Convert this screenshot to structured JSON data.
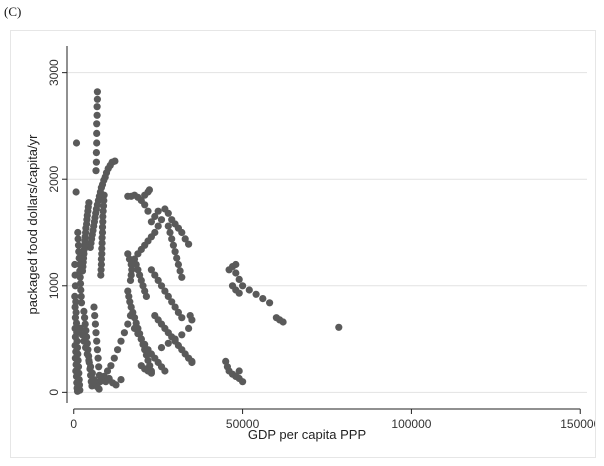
{
  "panel_label": "(C)",
  "chart_data": {
    "type": "scatter",
    "title": "",
    "xlabel": "GDP per capita PPP",
    "ylabel": "packaged food dollars/capita/yr",
    "xlim": [
      -2000,
      152000
    ],
    "ylim": [
      -100,
      3250
    ],
    "x_ticks": [
      0,
      50000,
      100000,
      150000
    ],
    "x_tick_labels": [
      "0",
      "50000",
      "100000",
      "150000"
    ],
    "y_ticks": [
      0,
      1000,
      2000,
      3000
    ],
    "y_tick_labels": [
      "0",
      "1000",
      "2000",
      "3000"
    ],
    "grid": "horizontal",
    "legend": "none",
    "marker_color": "#5a5a5a",
    "series": [
      {
        "points": [
          [
            800,
            2340
          ],
          [
            700,
            1880
          ],
          [
            7000,
            2820
          ],
          [
            7000,
            2750
          ],
          [
            6900,
            2680
          ],
          [
            6900,
            2600
          ],
          [
            6800,
            2520
          ],
          [
            6800,
            2430
          ],
          [
            6800,
            2340
          ],
          [
            6700,
            2250
          ],
          [
            6700,
            2160
          ],
          [
            6600,
            2080
          ],
          [
            12200,
            2170
          ],
          [
            11400,
            2160
          ],
          [
            10800,
            2130
          ],
          [
            10200,
            2100
          ],
          [
            9700,
            2060
          ],
          [
            9300,
            2020
          ],
          [
            8900,
            1990
          ],
          [
            8500,
            1950
          ],
          [
            8200,
            1920
          ],
          [
            7900,
            1880
          ],
          [
            7600,
            1840
          ],
          [
            7300,
            1800
          ],
          [
            7000,
            1760
          ],
          [
            6700,
            1720
          ],
          [
            6500,
            1680
          ],
          [
            6300,
            1640
          ],
          [
            6100,
            1600
          ],
          [
            5900,
            1560
          ],
          [
            5700,
            1520
          ],
          [
            5500,
            1480
          ],
          [
            5300,
            1440
          ],
          [
            5100,
            1400
          ],
          [
            4900,
            1360
          ],
          [
            4500,
            1780
          ],
          [
            4300,
            1740
          ],
          [
            4200,
            1700
          ],
          [
            4000,
            1660
          ],
          [
            3900,
            1620
          ],
          [
            3800,
            1580
          ],
          [
            3600,
            1540
          ],
          [
            3500,
            1500
          ],
          [
            3400,
            1460
          ],
          [
            3300,
            1420
          ],
          [
            3200,
            1380
          ],
          [
            3100,
            1340
          ],
          [
            3000,
            1300
          ],
          [
            2900,
            1260
          ],
          [
            2800,
            1220
          ],
          [
            2700,
            1180
          ],
          [
            2600,
            1140
          ],
          [
            9000,
            1850
          ],
          [
            8900,
            1800
          ],
          [
            8800,
            1750
          ],
          [
            8700,
            1700
          ],
          [
            8600,
            1650
          ],
          [
            8600,
            1600
          ],
          [
            8500,
            1550
          ],
          [
            8500,
            1500
          ],
          [
            8400,
            1450
          ],
          [
            8400,
            1400
          ],
          [
            8300,
            1350
          ],
          [
            8300,
            1300
          ],
          [
            8200,
            1250
          ],
          [
            8200,
            1200
          ],
          [
            8100,
            1150
          ],
          [
            8000,
            1100
          ],
          [
            1200,
            1500
          ],
          [
            1300,
            1440
          ],
          [
            1400,
            1380
          ],
          [
            1500,
            1320
          ],
          [
            1600,
            1260
          ],
          [
            1700,
            1200
          ],
          [
            1800,
            1140
          ],
          [
            1900,
            1080
          ],
          [
            2000,
            1020
          ],
          [
            2100,
            960
          ],
          [
            2200,
            900
          ],
          [
            2300,
            840
          ],
          [
            300,
            1200
          ],
          [
            400,
            1100
          ],
          [
            500,
            1000
          ],
          [
            300,
            900
          ],
          [
            600,
            850
          ],
          [
            400,
            800
          ],
          [
            700,
            750
          ],
          [
            500,
            700
          ],
          [
            800,
            650
          ],
          [
            400,
            600
          ],
          [
            900,
            560
          ],
          [
            500,
            520
          ],
          [
            1000,
            480
          ],
          [
            400,
            440
          ],
          [
            1100,
            420
          ],
          [
            600,
            380
          ],
          [
            1200,
            360
          ],
          [
            500,
            320
          ],
          [
            1300,
            300
          ],
          [
            700,
            260
          ],
          [
            1400,
            240
          ],
          [
            600,
            200
          ],
          [
            1500,
            180
          ],
          [
            800,
            150
          ],
          [
            1600,
            120
          ],
          [
            900,
            90
          ],
          [
            1700,
            70
          ],
          [
            1000,
            40
          ],
          [
            1800,
            20
          ],
          [
            1100,
            10
          ],
          [
            3000,
            760
          ],
          [
            3200,
            700
          ],
          [
            3400,
            640
          ],
          [
            3600,
            580
          ],
          [
            3800,
            520
          ],
          [
            4000,
            460
          ],
          [
            4200,
            400
          ],
          [
            4400,
            340
          ],
          [
            4600,
            280
          ],
          [
            4800,
            220
          ],
          [
            5000,
            160
          ],
          [
            5200,
            100
          ],
          [
            5400,
            60
          ],
          [
            6000,
            800
          ],
          [
            6200,
            720
          ],
          [
            6400,
            640
          ],
          [
            6600,
            560
          ],
          [
            6800,
            480
          ],
          [
            7000,
            400
          ],
          [
            7200,
            320
          ],
          [
            7400,
            240
          ],
          [
            7600,
            160
          ],
          [
            7800,
            100
          ],
          [
            2000,
            600
          ],
          [
            2500,
            540
          ],
          [
            3000,
            480
          ],
          [
            3500,
            420
          ],
          [
            4000,
            360
          ],
          [
            4500,
            300
          ],
          [
            5000,
            240
          ],
          [
            5500,
            180
          ],
          [
            6000,
            120
          ],
          [
            6500,
            80
          ],
          [
            7000,
            50
          ],
          [
            7500,
            30
          ],
          [
            8000,
            120
          ],
          [
            9000,
            150
          ],
          [
            10000,
            200
          ],
          [
            11000,
            250
          ],
          [
            12000,
            320
          ],
          [
            13000,
            400
          ],
          [
            14000,
            480
          ],
          [
            15000,
            560
          ],
          [
            16000,
            640
          ],
          [
            16800,
            720
          ],
          [
            9500,
            100
          ],
          [
            10500,
            130
          ],
          [
            11500,
            90
          ],
          [
            12500,
            70
          ],
          [
            14000,
            120
          ],
          [
            16000,
            1300
          ],
          [
            16500,
            1250
          ],
          [
            17000,
            1200
          ],
          [
            17200,
            1150
          ],
          [
            17000,
            1100
          ],
          [
            16800,
            1050
          ],
          [
            16000,
            950
          ],
          [
            16300,
            900
          ],
          [
            16600,
            850
          ],
          [
            17000,
            800
          ],
          [
            17500,
            750
          ],
          [
            18000,
            700
          ],
          [
            18500,
            650
          ],
          [
            19000,
            600
          ],
          [
            19500,
            550
          ],
          [
            20000,
            500
          ],
          [
            20500,
            450
          ],
          [
            21000,
            400
          ],
          [
            21500,
            350
          ],
          [
            22000,
            300
          ],
          [
            22500,
            250
          ],
          [
            23000,
            200
          ],
          [
            18000,
            1250
          ],
          [
            18500,
            1200
          ],
          [
            19000,
            1150
          ],
          [
            19500,
            1100
          ],
          [
            20000,
            1050
          ],
          [
            20500,
            1000
          ],
          [
            21000,
            950
          ],
          [
            21500,
            900
          ],
          [
            16000,
            1840
          ],
          [
            17000,
            1840
          ],
          [
            18000,
            1850
          ],
          [
            19000,
            1830
          ],
          [
            20000,
            1800
          ],
          [
            21000,
            1850
          ],
          [
            22000,
            1880
          ],
          [
            22400,
            1900
          ],
          [
            21000,
            1760
          ],
          [
            22000,
            1700
          ],
          [
            23000,
            1600
          ],
          [
            24000,
            1650
          ],
          [
            25000,
            1700
          ],
          [
            26000,
            1620
          ],
          [
            25000,
            1560
          ],
          [
            24000,
            1500
          ],
          [
            23000,
            1460
          ],
          [
            22000,
            1420
          ],
          [
            21000,
            1380
          ],
          [
            20000,
            1340
          ],
          [
            19000,
            1300
          ],
          [
            27000,
            1720
          ],
          [
            28000,
            1680
          ],
          [
            29000,
            1620
          ],
          [
            30000,
            1580
          ],
          [
            31000,
            1540
          ],
          [
            32000,
            1500
          ],
          [
            33000,
            1440
          ],
          [
            34000,
            1390
          ],
          [
            28000,
            1560
          ],
          [
            28500,
            1500
          ],
          [
            29000,
            1440
          ],
          [
            29500,
            1380
          ],
          [
            30000,
            1320
          ],
          [
            30500,
            1260
          ],
          [
            31000,
            1200
          ],
          [
            31500,
            1140
          ],
          [
            32000,
            1080
          ],
          [
            23000,
            1150
          ],
          [
            24000,
            1100
          ],
          [
            25000,
            1050
          ],
          [
            26000,
            1000
          ],
          [
            27000,
            950
          ],
          [
            28000,
            900
          ],
          [
            29000,
            850
          ],
          [
            30000,
            800
          ],
          [
            31000,
            750
          ],
          [
            32000,
            700
          ],
          [
            24000,
            720
          ],
          [
            25000,
            680
          ],
          [
            26000,
            640
          ],
          [
            27000,
            600
          ],
          [
            28000,
            560
          ],
          [
            29000,
            520
          ],
          [
            30000,
            480
          ],
          [
            31000,
            440
          ],
          [
            32000,
            400
          ],
          [
            33000,
            360
          ],
          [
            34000,
            320
          ],
          [
            35000,
            280
          ],
          [
            18000,
            600
          ],
          [
            19000,
            550
          ],
          [
            20000,
            500
          ],
          [
            21000,
            450
          ],
          [
            22000,
            400
          ],
          [
            23000,
            360
          ],
          [
            24000,
            320
          ],
          [
            25000,
            280
          ],
          [
            26000,
            240
          ],
          [
            27000,
            200
          ],
          [
            20000,
            250
          ],
          [
            21000,
            220
          ],
          [
            22000,
            200
          ],
          [
            23000,
            180
          ],
          [
            26000,
            420
          ],
          [
            28000,
            460
          ],
          [
            30000,
            500
          ],
          [
            32000,
            540
          ],
          [
            34000,
            600
          ],
          [
            35000,
            680
          ],
          [
            34500,
            720
          ],
          [
            35000,
            290
          ],
          [
            46000,
            1150
          ],
          [
            47000,
            1180
          ],
          [
            48000,
            1200
          ],
          [
            48000,
            1120
          ],
          [
            49000,
            1060
          ],
          [
            50000,
            1000
          ],
          [
            52000,
            960
          ],
          [
            54000,
            920
          ],
          [
            56000,
            880
          ],
          [
            58000,
            840
          ],
          [
            60000,
            700
          ],
          [
            61000,
            680
          ],
          [
            62000,
            660
          ],
          [
            47000,
            1000
          ],
          [
            48000,
            960
          ],
          [
            49000,
            930
          ],
          [
            45000,
            290
          ],
          [
            45500,
            240
          ],
          [
            46000,
            200
          ],
          [
            47000,
            170
          ],
          [
            48000,
            150
          ],
          [
            49000,
            130
          ],
          [
            50000,
            100
          ],
          [
            49000,
            200
          ],
          [
            78500,
            610
          ]
        ]
      }
    ]
  }
}
